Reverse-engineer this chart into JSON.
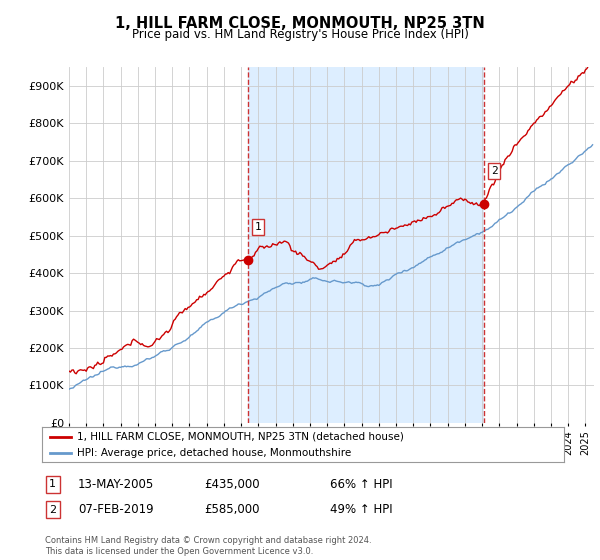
{
  "title": "1, HILL FARM CLOSE, MONMOUTH, NP25 3TN",
  "subtitle": "Price paid vs. HM Land Registry's House Price Index (HPI)",
  "ylabel_ticks": [
    "£0",
    "£100K",
    "£200K",
    "£300K",
    "£400K",
    "£500K",
    "£600K",
    "£700K",
    "£800K",
    "£900K"
  ],
  "ytick_values": [
    0,
    100000,
    200000,
    300000,
    400000,
    500000,
    600000,
    700000,
    800000,
    900000
  ],
  "ylim": [
    0,
    950000
  ],
  "xlim_start": 1995.0,
  "xlim_end": 2025.5,
  "marker1_x": 2005.37,
  "marker1_y": 435000,
  "marker2_x": 2019.1,
  "marker2_y": 585000,
  "vline1_x": 2005.37,
  "vline2_x": 2019.1,
  "legend_label_red": "1, HILL FARM CLOSE, MONMOUTH, NP25 3TN (detached house)",
  "legend_label_blue": "HPI: Average price, detached house, Monmouthshire",
  "red_color": "#cc0000",
  "blue_color": "#6699cc",
  "shade_color": "#ddeeff",
  "vline_color": "#cc3333",
  "grid_color": "#cccccc",
  "background_color": "#ffffff",
  "footer": "Contains HM Land Registry data © Crown copyright and database right 2024.\nThis data is licensed under the Open Government Licence v3.0."
}
